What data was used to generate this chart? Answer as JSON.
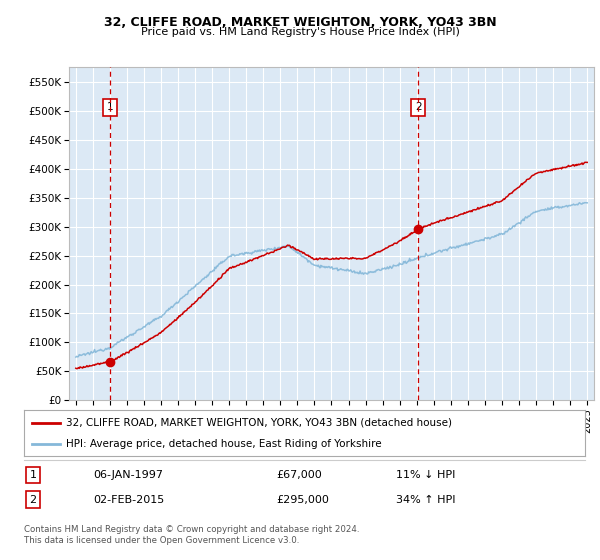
{
  "title1": "32, CLIFFE ROAD, MARKET WEIGHTON, YORK, YO43 3BN",
  "title2": "Price paid vs. HM Land Registry's House Price Index (HPI)",
  "bg_color": "#dce9f5",
  "grid_color": "#ffffff",
  "red_line_color": "#cc0000",
  "blue_line_color": "#85b8d9",
  "annotation_box_color": "#cc0000",
  "dashed_line_color": "#cc0000",
  "ylim": [
    0,
    575000
  ],
  "yticks": [
    0,
    50000,
    100000,
    150000,
    200000,
    250000,
    300000,
    350000,
    400000,
    450000,
    500000,
    550000
  ],
  "xlim_start": 1994.6,
  "xlim_end": 2025.4,
  "xticks": [
    1995,
    1996,
    1997,
    1998,
    1999,
    2000,
    2001,
    2002,
    2003,
    2004,
    2005,
    2006,
    2007,
    2008,
    2009,
    2010,
    2011,
    2012,
    2013,
    2014,
    2015,
    2016,
    2017,
    2018,
    2019,
    2020,
    2021,
    2022,
    2023,
    2024,
    2025
  ],
  "sale1_x": 1997.03,
  "sale1_y": 67000,
  "sale2_x": 2015.09,
  "sale2_y": 295000,
  "legend1": "32, CLIFFE ROAD, MARKET WEIGHTON, YORK, YO43 3BN (detached house)",
  "legend2": "HPI: Average price, detached house, East Riding of Yorkshire",
  "table1_date": "06-JAN-1997",
  "table1_price": "£67,000",
  "table1_hpi": "11% ↓ HPI",
  "table2_date": "02-FEB-2015",
  "table2_price": "£295,000",
  "table2_hpi": "34% ↑ HPI",
  "footer": "Contains HM Land Registry data © Crown copyright and database right 2024.\nThis data is licensed under the Open Government Licence v3.0."
}
